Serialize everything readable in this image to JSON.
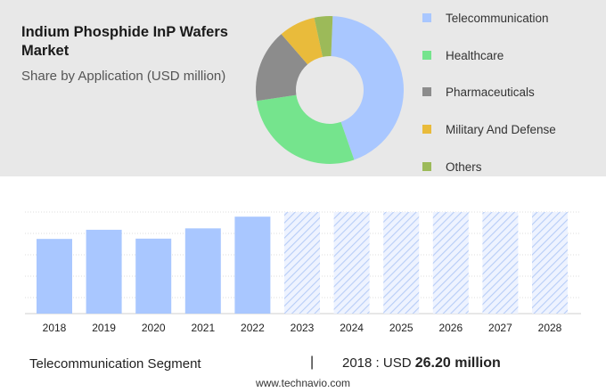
{
  "title": "Indium Phosphide InP Wafers Market",
  "subtitle": "Share by Application (USD million)",
  "legend": [
    {
      "label": "Telecommunication",
      "color": "#a9c7ff"
    },
    {
      "label": "Healthcare",
      "color": "#75e48d"
    },
    {
      "label": "Pharmaceuticals",
      "color": "#8c8c8c"
    },
    {
      "label": "Military And Defense",
      "color": "#e9bb3b"
    },
    {
      "label": "Others",
      "color": "#9cba59"
    }
  ],
  "footer": {
    "segment": "Telecommunication Segment",
    "separator": "|",
    "year": "2018",
    "colon": ":",
    "currency": "USD",
    "amount": "26.20 million",
    "url": "www.technavio.com"
  },
  "chart_data": [
    {
      "type": "pie",
      "title": "",
      "donut": true,
      "categories": [
        "Telecommunication",
        "Healthcare",
        "Pharmaceuticals",
        "Military And Defense",
        "Others"
      ],
      "values": [
        44,
        28,
        16,
        8,
        4
      ],
      "colors": [
        "#a9c7ff",
        "#75e48d",
        "#8c8c8c",
        "#e9bb3b",
        "#9cba59"
      ]
    },
    {
      "type": "bar",
      "categories": [
        "2018",
        "2019",
        "2020",
        "2021",
        "2022",
        "2023",
        "2024",
        "2025",
        "2026",
        "2027",
        "2028"
      ],
      "values": [
        26.2,
        29.4,
        26.3,
        29.9,
        34.0,
        null,
        null,
        null,
        null,
        null,
        null
      ],
      "forecast_categories": [
        "2023",
        "2024",
        "2025",
        "2026",
        "2027",
        "2028"
      ],
      "ylim": [
        0,
        40
      ],
      "bar_color": "#a9c7ff",
      "grid": true,
      "xlabel": "",
      "ylabel": ""
    }
  ]
}
